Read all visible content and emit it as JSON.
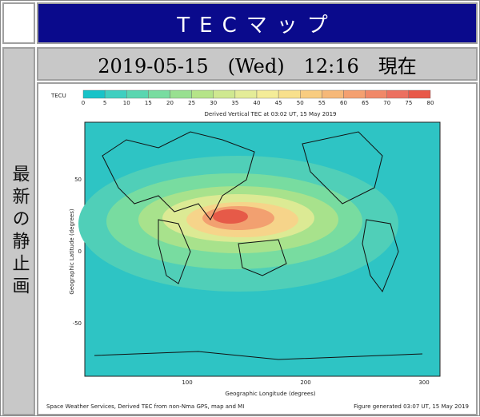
{
  "header": {
    "title": "TECマップ"
  },
  "datebar": {
    "text": "2019-05-15　(Wed)　12:16　現在"
  },
  "side": {
    "label": "最新の静止画"
  },
  "map": {
    "colorbar_unit": "TECU",
    "colorbar_ticks": [
      "0",
      "5",
      "10",
      "15",
      "20",
      "25",
      "30",
      "35",
      "40",
      "45",
      "50",
      "55",
      "60",
      "65",
      "70",
      "75",
      "80"
    ],
    "colorbar_colors": [
      "#17c3c8",
      "#3fcfc0",
      "#5ad6b0",
      "#78dca0",
      "#98e090",
      "#b5e488",
      "#cfe890",
      "#e4ec98",
      "#f4ec98",
      "#f8e08c",
      "#f8cc80",
      "#f6b878",
      "#f4a070",
      "#f08868",
      "#ec7060",
      "#e85848"
    ],
    "title": "Derived Vertical TEC at 03:02 UT, 15 May 2019",
    "y_ticks": [
      "50",
      "0",
      "-50"
    ],
    "x_ticks": [
      "100",
      "200",
      "300"
    ],
    "x_label": "Geographic Longitude (degrees)",
    "y_label": "Geographic Latitude (degrees)",
    "footer_left": "Space Weather Services, Derived TEC from non-Nma GPS, map and MI",
    "footer_right": "Figure generated 03:07 UT, 15 May 2019"
  }
}
